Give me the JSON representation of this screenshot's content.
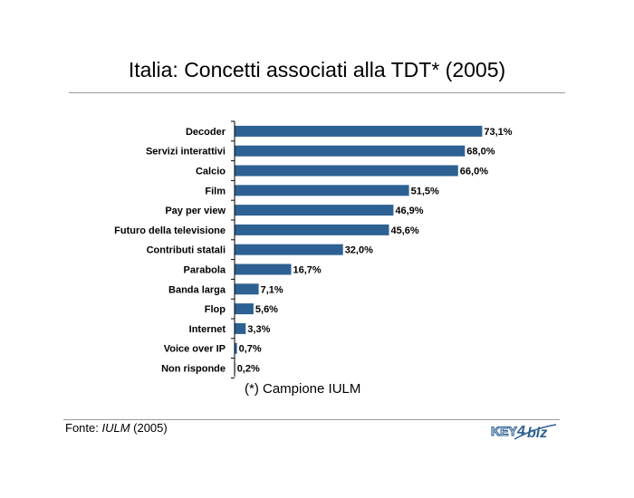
{
  "page": {
    "title": "Italia: Concetti associati alla TDT* (2005)",
    "note": "(*) Campione IULM",
    "source_prefix": "Fonte: ",
    "source_name": "IULM",
    "source_suffix": " (2005)",
    "logo_text": "KEY4biz"
  },
  "chart_data": {
    "type": "bar",
    "orientation": "horizontal",
    "title": "Italia: Concetti associati alla TDT* (2005)",
    "categories": [
      "Decoder",
      "Servizi interattivi",
      "Calcio",
      "Film",
      "Pay per view",
      "Futuro della televisione",
      "Contributi statali",
      "Parabola",
      "Banda larga",
      "Flop",
      "Internet",
      "Voice over IP",
      "Non risponde"
    ],
    "values": [
      73.1,
      68.0,
      66.0,
      51.5,
      46.9,
      45.6,
      32.0,
      16.7,
      7.1,
      5.6,
      3.3,
      0.7,
      0.2
    ],
    "value_labels": [
      "73,1%",
      "68,0%",
      "66,0%",
      "51,5%",
      "46,9%",
      "45,6%",
      "32,0%",
      "16,7%",
      "7,1%",
      "5,6%",
      "3,3%",
      "0,7%",
      "0,2%"
    ],
    "xlim": [
      0,
      100
    ],
    "bar_color": "#2e6193",
    "grid": false,
    "legend": "none"
  }
}
